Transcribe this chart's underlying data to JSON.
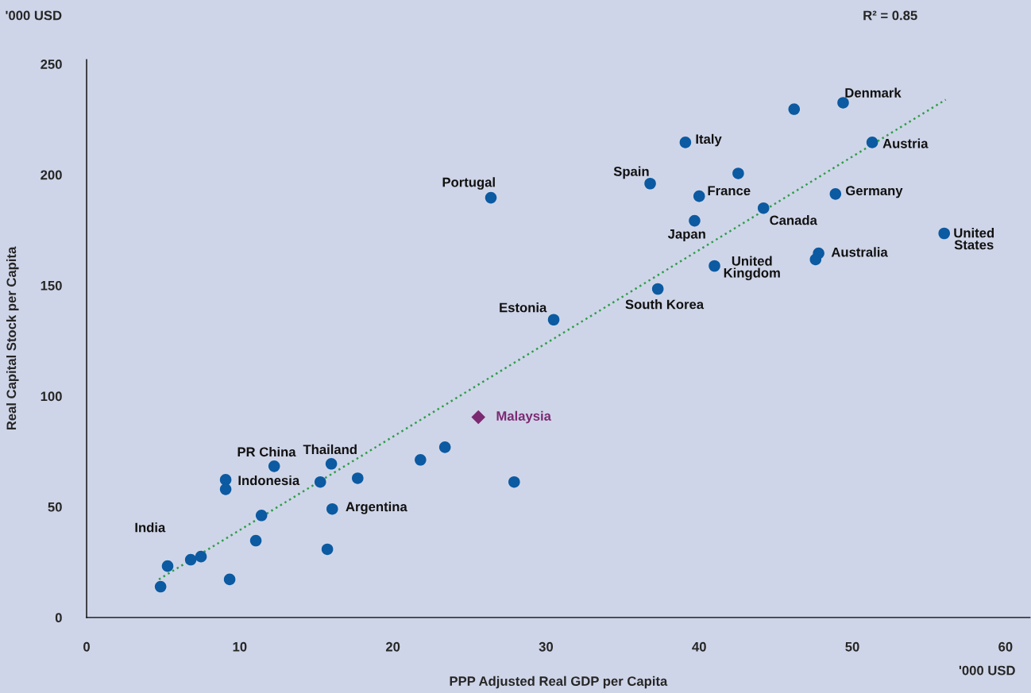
{
  "chart_data": {
    "type": "scatter",
    "xlabel": "PPP Adjusted Real GDP per Capita",
    "ylabel": "Real Capital Stock per Capita",
    "xlim": [
      0,
      61.6
    ],
    "ylim": [
      0,
      252
    ],
    "xticks": [
      0,
      10,
      20,
      30,
      40,
      50,
      60
    ],
    "yticks": [
      0,
      50,
      100,
      150,
      200,
      250
    ],
    "grid": false,
    "legend": false,
    "series": [
      {
        "marker": "circle",
        "color": "#0b5aa2",
        "x": [
          5.29,
          4.83,
          6.8,
          7.47,
          9.34,
          9.08,
          9.08,
          12.25,
          11.42,
          11.05,
          15.26,
          15.98,
          16.04,
          15.72,
          17.7,
          21.8,
          23.4,
          27.92,
          26.4,
          30.5,
          37.3,
          36.8,
          39.1,
          39.7,
          40.0,
          41.0,
          42.55,
          44.2,
          46.2,
          49.4,
          51.3,
          48.9,
          47.8,
          47.6,
          56.0
        ],
        "values": [
          23.2,
          13.9,
          26.1,
          27.5,
          17.2,
          62.2,
          57.9,
          68.3,
          46.1,
          34.7,
          61.2,
          69.4,
          49.0,
          30.8,
          62.9,
          71.2,
          76.9,
          61.2,
          189.6,
          134.5,
          148.4,
          196.0,
          214.6,
          179.2,
          190.3,
          158.8,
          200.6,
          184.9,
          229.6,
          232.5,
          214.6,
          191.3,
          164.5,
          161.7,
          173.5
        ]
      },
      {
        "type": "scatter",
        "name": "Malaysia",
        "marker": "diamond",
        "color": "#7b2a72",
        "x": [
          25.58
        ],
        "values": [
          90.5
        ]
      },
      {
        "type": "line",
        "line_style": "dotted",
        "color": "#2e9e4a",
        "x": [
          4.72,
          56.1
        ],
        "values": [
          17.2,
          233.9
        ]
      }
    ],
    "annotations": [
      {
        "text": "India",
        "x": 5.29,
        "y": 23.2
      },
      {
        "text": "PR China",
        "x": 12.25,
        "y": 68.3
      },
      {
        "text": "Indonesia",
        "x": 9.08,
        "y": 57.9
      },
      {
        "text": "Thailand",
        "x": 15.98,
        "y": 69.4
      },
      {
        "text": "Argentina",
        "x": 16.04,
        "y": 49.0
      },
      {
        "text": "Portugal",
        "x": 26.4,
        "y": 189.6
      },
      {
        "text": "Estonia",
        "x": 30.5,
        "y": 134.5
      },
      {
        "text": "South Korea",
        "x": 37.3,
        "y": 148.4
      },
      {
        "text": "Spain",
        "x": 36.8,
        "y": 196.0
      },
      {
        "text": "Italy",
        "x": 39.1,
        "y": 214.6
      },
      {
        "text": "Japan",
        "x": 39.7,
        "y": 179.2
      },
      {
        "text": "France",
        "x": 40.0,
        "y": 190.3
      },
      {
        "text": "United\nKingdom",
        "x": 41.0,
        "y": 158.8
      },
      {
        "text": "Canada",
        "x": 44.2,
        "y": 184.9
      },
      {
        "text": "Denmark",
        "x": 49.4,
        "y": 232.5
      },
      {
        "text": "Austria",
        "x": 51.3,
        "y": 214.6
      },
      {
        "text": "Germany",
        "x": 48.9,
        "y": 191.3
      },
      {
        "text": "Australia",
        "x": 47.8,
        "y": 164.5
      },
      {
        "text": "United\nStates",
        "x": 56.0,
        "y": 173.5
      },
      "'000 USD",
      "R² = 0.85",
      "'000 USD"
    ]
  }
}
